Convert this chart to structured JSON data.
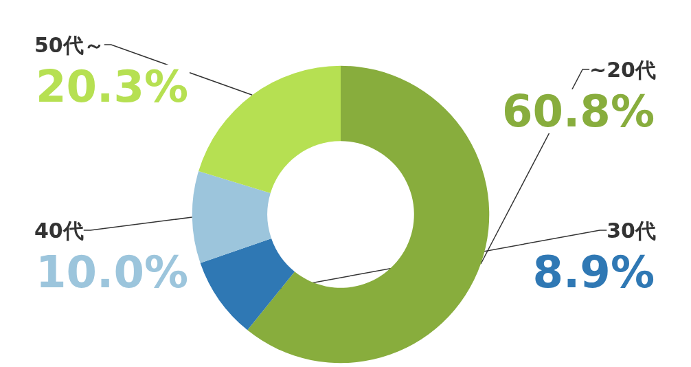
{
  "chart_data": {
    "type": "donut",
    "categories": [
      "~20代",
      "30代",
      "40代",
      "50代～"
    ],
    "values": [
      60.8,
      8.9,
      10.0,
      20.3
    ],
    "colors": [
      "#88ad3d",
      "#2f78b4",
      "#9cc5dc",
      "#b6e052"
    ],
    "value_labels": [
      "60.8%",
      "8.9%",
      "10.0%",
      "20.3%"
    ],
    "legend": false
  }
}
